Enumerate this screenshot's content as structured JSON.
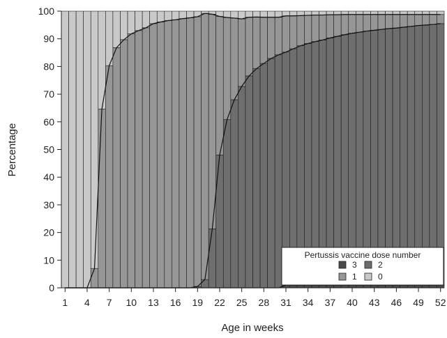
{
  "chart_data": {
    "type": "bar",
    "stacked": true,
    "x": [
      1,
      2,
      3,
      4,
      5,
      6,
      7,
      8,
      9,
      10,
      11,
      12,
      13,
      14,
      15,
      16,
      17,
      18,
      19,
      20,
      21,
      22,
      23,
      24,
      25,
      26,
      27,
      28,
      29,
      30,
      31,
      32,
      33,
      34,
      35,
      36,
      37,
      38,
      39,
      40,
      41,
      42,
      43,
      44,
      45,
      46,
      47,
      48,
      49,
      50,
      51,
      52
    ],
    "x_tick_labels": [
      "1",
      "4",
      "7",
      "10",
      "13",
      "16",
      "19",
      "22",
      "25",
      "28",
      "31",
      "34",
      "37",
      "40",
      "43",
      "46",
      "49",
      "52"
    ],
    "xlabel": "Age in weeks",
    "ylabel": "Percentage",
    "ylim": [
      0,
      100
    ],
    "y_ticks": [
      0,
      10,
      20,
      30,
      40,
      50,
      60,
      70,
      80,
      90,
      100
    ],
    "legend": {
      "title": "Pertussis vaccine dose number",
      "position": "bottom-right",
      "entries": [
        "3",
        "2",
        "1",
        "0"
      ]
    },
    "series": [
      {
        "name": "3",
        "color": "#4a4a4a",
        "values": [
          0,
          0,
          0,
          0,
          0,
          0,
          0,
          0,
          0,
          0,
          0,
          0,
          0,
          0,
          0,
          0,
          0,
          0,
          0,
          0,
          0,
          0,
          0,
          0,
          0,
          0,
          0,
          0,
          0,
          0,
          1,
          1,
          1,
          1,
          1,
          1,
          1,
          1,
          1,
          1,
          1,
          1,
          1,
          1,
          1,
          1,
          1,
          1,
          1,
          1,
          1,
          1
        ]
      },
      {
        "name": "2",
        "color": "#6e6e6e",
        "values": [
          0,
          0,
          0,
          0,
          0,
          0,
          0,
          0,
          0,
          0,
          0,
          0,
          0,
          0,
          0,
          0,
          0,
          0,
          0.5,
          3,
          21.3,
          48,
          60.8,
          68,
          72.8,
          76.6,
          79.2,
          81.1,
          82.9,
          84.2,
          84.2,
          85.4,
          86.5,
          87.3,
          88,
          88.6,
          89.3,
          89.9,
          90.5,
          91,
          91.4,
          91.8,
          92.1,
          92.4,
          92.7,
          92.9,
          93.2,
          93.5,
          93.8,
          94,
          94.2,
          94.5
        ]
      },
      {
        "name": "1",
        "color": "#969696",
        "values": [
          0,
          0,
          0,
          0,
          7,
          64.6,
          80.3,
          86.8,
          89.7,
          91.8,
          93,
          94,
          95.5,
          96.1,
          96.6,
          96.9,
          97.3,
          97.6,
          97.5,
          96.2,
          77.6,
          50.1,
          36.9,
          29.5,
          24.4,
          21.2,
          18.7,
          16.7,
          14.9,
          13.6,
          13.1,
          11.9,
          10.9,
          10.2,
          9.6,
          9,
          8.4,
          7.8,
          7.3,
          6.8,
          6.4,
          6,
          5.7,
          5.4,
          5.1,
          4.9,
          4.6,
          4.3,
          4,
          3.8,
          3.6,
          3.3
        ]
      },
      {
        "name": "0",
        "color": "#c9c9c9",
        "values": [
          100,
          100,
          100,
          100,
          93,
          35.4,
          19.7,
          13.2,
          10.3,
          8.2,
          7,
          6,
          4.5,
          3.9,
          3.4,
          3.1,
          2.7,
          2.4,
          2,
          0.8,
          1.1,
          1.9,
          2.3,
          2.5,
          2.8,
          2.2,
          2.1,
          2.2,
          2.2,
          2.2,
          1.7,
          1.7,
          1.6,
          1.5,
          1.4,
          1.4,
          1.3,
          1.3,
          1.2,
          1.2,
          1.2,
          1.2,
          1.2,
          1.2,
          1.2,
          1.2,
          1.2,
          1.2,
          1.2,
          1.2,
          1.2,
          1.2
        ]
      }
    ]
  }
}
